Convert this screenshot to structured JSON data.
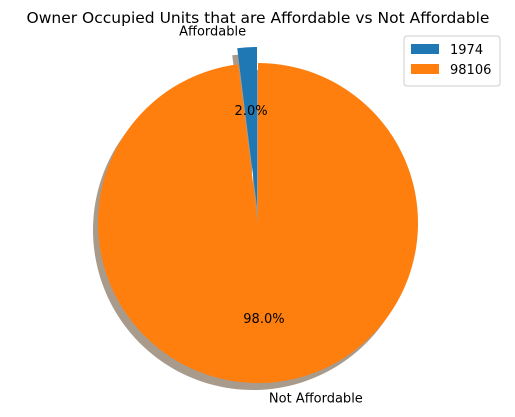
{
  "chart_data": {
    "type": "pie",
    "title": "Owner Occupied Units that are Affordable vs Not Affordable",
    "labels": [
      "Affordable",
      "Not Affordable"
    ],
    "values": [
      1974,
      98106
    ],
    "legend_entries": [
      "1974",
      "98106"
    ],
    "percent_labels": [
      "2.0%",
      "98.0%"
    ],
    "colors": [
      "#1f77b4",
      "#ff7f0e"
    ],
    "explode": [
      0.1,
      0
    ],
    "start_angle_deg": 90,
    "shadow": true,
    "legend_position": "top-right"
  }
}
